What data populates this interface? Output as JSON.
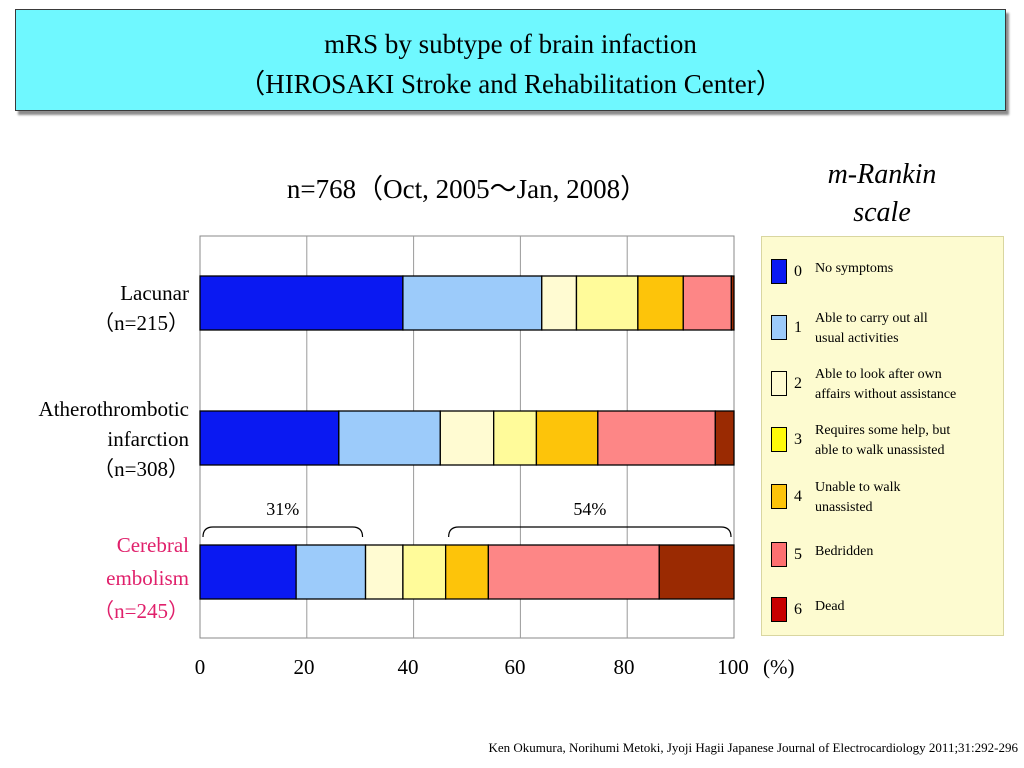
{
  "title": {
    "line1": "mRS by subtype of brain infaction",
    "line2": "（HIROSAKI Stroke and Rehabilitation Center）"
  },
  "chart_data": {
    "type": "bar",
    "orientation": "horizontal",
    "stacked": true,
    "title": "n=768（Oct, 2005～Jan, 2008）",
    "categories": [
      {
        "label_lines": [
          "Lacunar",
          "（n=215）"
        ],
        "color": "#000000"
      },
      {
        "label_lines": [
          "Atherothrombotic",
          "infarction",
          "（n=308）"
        ],
        "color": "#000000"
      },
      {
        "label_lines": [
          "Cerebral",
          "embolism",
          "（n=245）"
        ],
        "color": "#e0206b"
      }
    ],
    "series": [
      {
        "name": "0",
        "color": "#0a19f2",
        "values": [
          38,
          26,
          18
        ]
      },
      {
        "name": "1",
        "color": "#9ccbfa",
        "values": [
          26,
          19,
          13
        ]
      },
      {
        "name": "2",
        "color": "#fffbd2",
        "values": [
          6.5,
          10,
          7
        ]
      },
      {
        "name": "3",
        "color": "#fffb9a",
        "values": [
          11.5,
          8,
          8
        ]
      },
      {
        "name": "4",
        "color": "#fdc40a",
        "values": [
          8.5,
          11.5,
          8
        ]
      },
      {
        "name": "5",
        "color": "#fd8686",
        "values": [
          9,
          22,
          32
        ]
      },
      {
        "name": "6",
        "color": "#9a2a02",
        "values": [
          0.5,
          3.5,
          14
        ]
      }
    ],
    "x_ticks": [
      "0",
      "20",
      "40",
      "60",
      "80",
      "100"
    ],
    "x_unit": "(%)",
    "xlim": [
      0,
      100
    ],
    "grid": true,
    "annotations": [
      {
        "label": "31%",
        "from": 0,
        "to": 31,
        "category": 2
      },
      {
        "label": "54%",
        "from": 46,
        "to": 100,
        "category": 2
      }
    ]
  },
  "legend": {
    "title_lines": [
      "m-Rankin",
      "scale"
    ],
    "items": [
      {
        "num": "0",
        "color": "#0a19f2",
        "lines": [
          "No symptoms"
        ]
      },
      {
        "num": "1",
        "color": "#9ccbfa",
        "lines": [
          "Able to carry out all",
          "usual activities"
        ]
      },
      {
        "num": "2",
        "color": "#fffbd2",
        "lines": [
          "Able to look after own",
          "affairs without assistance"
        ]
      },
      {
        "num": "3",
        "color": "#fffb0a",
        "lines": [
          "Requires some help, but",
          "able to walk unassisted"
        ]
      },
      {
        "num": "4",
        "color": "#fdc40a",
        "lines": [
          "Unable to walk",
          "unassisted"
        ]
      },
      {
        "num": "5",
        "color": "#fd7070",
        "lines": [
          "Bedridden"
        ]
      },
      {
        "num": "6",
        "color": "#c80000",
        "lines": [
          "Dead"
        ]
      }
    ]
  },
  "citation": "Ken Okumura, Norihumi Metoki, Jyoji Hagii   Japanese Journal of  Electrocardiology 2011;31:292-296"
}
